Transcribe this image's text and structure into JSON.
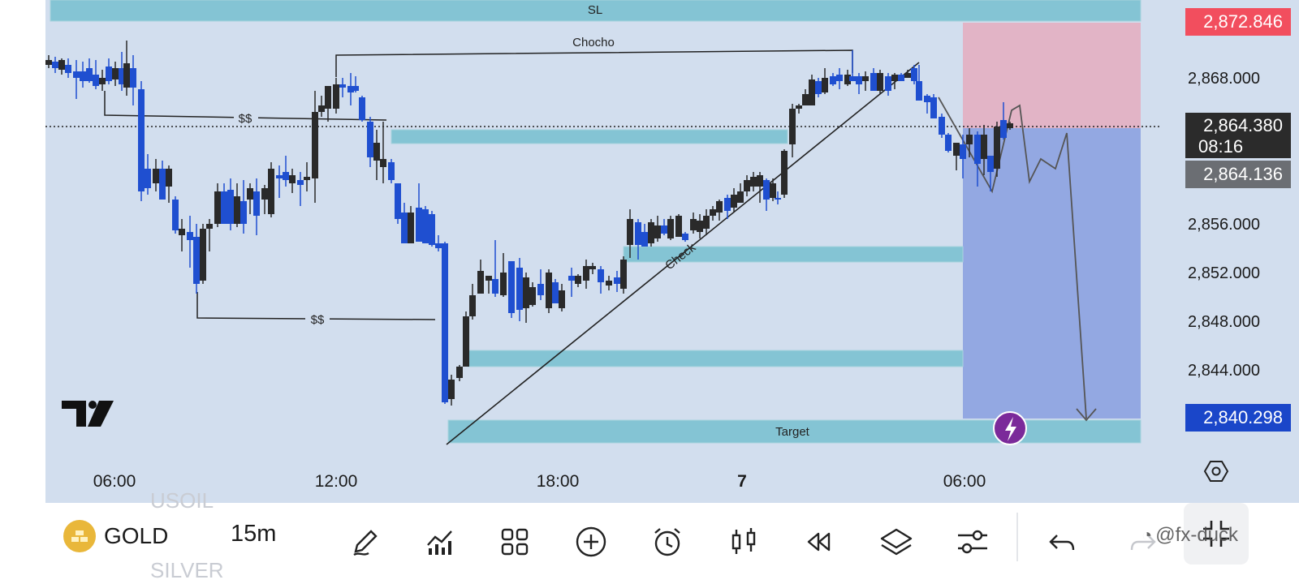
{
  "chart": {
    "symbol": "GOLD",
    "timeframe": "15m",
    "symbol_above": "USOIL",
    "symbol_below": "SILVER",
    "watermark": "@fx-duck",
    "zone_labels": {
      "sl": "SL",
      "target": "Target",
      "chocho": "Chocho",
      "liquidity_top": "$$",
      "liquidity_bottom": "$$",
      "check": "Check"
    },
    "price_axis": [
      "2,868.000",
      "2,856.000",
      "2,852.000",
      "2,848.000",
      "2,844.000"
    ],
    "price_tags": {
      "top": "2,872.846",
      "current": "2,864.380",
      "countdown": "08:16",
      "bid": "2,864.136",
      "bottom": "2,840.298"
    },
    "time_axis": [
      "06:00",
      "12:00",
      "18:00",
      "7",
      "06:00"
    ],
    "colors": {
      "bg": "#d2deee",
      "zone": "#7ec4d4",
      "up": "#2a2a2a",
      "down": "#1f4fd0",
      "red_tag": "#f24e5e",
      "blue_tag": "#1a46c9",
      "dark_tag": "#2b2b2b",
      "grey_tag": "#6b6e73"
    }
  },
  "toolbar": {
    "icons": [
      "pencil-icon",
      "indicators-icon",
      "layouts-icon",
      "add-icon",
      "alert-icon",
      "chart-type-icon",
      "replay-icon",
      "layers-icon",
      "settings-sliders-icon",
      "undo-icon",
      "redo-icon",
      "fullscreen-exit-icon"
    ]
  }
}
